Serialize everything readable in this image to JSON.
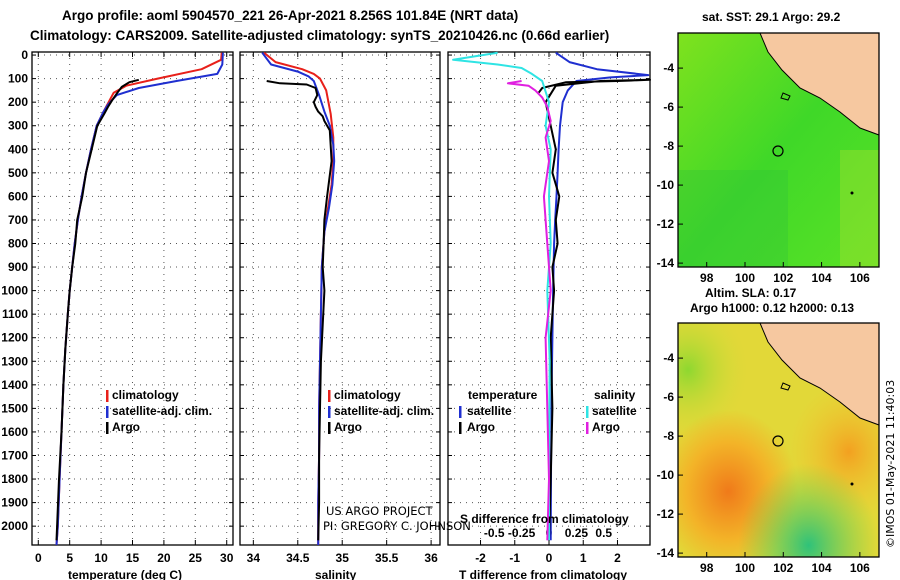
{
  "title": {
    "line1": "Argo profile: aoml 5904570_221 26-Apr-2021 8.256S 101.84E (NRT data)",
    "line2": "Climatology: CARS2009. Satellite-adjusted climatology: synTS_20210426.nc (0.66d earlier)"
  },
  "colors": {
    "climatology": "#e8201a",
    "satellite": "#1f2fd0",
    "argo": "#000000",
    "salinity_sat": "#2fe4e4",
    "salinity_argo": "#e020e0",
    "land": "#f6c8a0"
  },
  "chart_data": [
    {
      "type": "line",
      "name": "temperature",
      "xlabel": "temperature (deg C)",
      "ylabel": "depth",
      "xlim": [
        -1,
        31
      ],
      "ylim": [
        2080,
        0
      ],
      "xticks": [
        0,
        5,
        10,
        15,
        20,
        25,
        30
      ],
      "yticks": [
        0,
        100,
        200,
        300,
        400,
        500,
        600,
        700,
        800,
        900,
        1000,
        1100,
        1200,
        1300,
        1400,
        1500,
        1600,
        1700,
        1800,
        1900,
        2000
      ],
      "legend": [
        "climatology",
        "satellite-adj. clim.",
        "Argo"
      ],
      "series": [
        {
          "name": "climatology",
          "color_key": "climatology",
          "x": [
            29.2,
            29.1,
            26,
            19,
            14,
            12,
            11.2,
            10.4,
            9.3,
            8.4,
            7.6,
            6.9,
            6.3,
            5.8,
            5.4,
            5.0,
            4.7,
            4.3,
            4.0,
            3.7,
            3.4,
            3.1,
            2.9
          ],
          "y": [
            -10,
            20,
            60,
            100,
            130,
            160,
            200,
            240,
            300,
            400,
            500,
            600,
            700,
            800,
            900,
            1000,
            1100,
            1250,
            1400,
            1600,
            1800,
            2000,
            2080
          ]
        },
        {
          "name": "satellite-adj. clim.",
          "color_key": "satellite",
          "x": [
            29.4,
            29.3,
            28.5,
            22,
            16,
            12.5,
            11.1,
            10.4,
            9.3,
            8.4,
            7.6,
            6.9,
            6.3,
            5.8,
            5.4,
            5.0,
            4.7,
            4.3,
            4.0,
            3.7,
            3.4,
            3.1,
            2.9
          ],
          "y": [
            -10,
            40,
            80,
            110,
            140,
            170,
            210,
            240,
            300,
            400,
            500,
            600,
            700,
            800,
            900,
            1000,
            1100,
            1250,
            1400,
            1600,
            1800,
            2000,
            2080
          ]
        },
        {
          "name": "Argo",
          "color_key": "argo",
          "x": [
            16,
            14.5,
            13.3,
            12.6,
            11.8,
            11.1,
            10.5,
            9.4,
            8.5,
            7.6,
            7.0,
            6.2,
            5.9,
            5.4,
            5.0,
            4.7,
            4.3,
            4.0,
            3.7,
            3.3,
            3.0,
            2.9
          ],
          "y": [
            105,
            115,
            135,
            160,
            190,
            220,
            250,
            300,
            400,
            500,
            600,
            700,
            800,
            900,
            1000,
            1100,
            1250,
            1400,
            1600,
            1800,
            2000,
            2060
          ]
        }
      ]
    },
    {
      "type": "line",
      "name": "salinity",
      "xlabel": "salinity",
      "ylabel": "depth",
      "xlim": [
        33.85,
        36.1
      ],
      "ylim": [
        2080,
        0
      ],
      "xticks": [
        34,
        34.5,
        35,
        35.5,
        36
      ],
      "legend": [
        "climatology",
        "satellite-adj. clim.",
        "Argo"
      ],
      "annotations": [
        "US ARGO PROJECT",
        "PI: GREGORY C. JOHNSON"
      ],
      "series": [
        {
          "name": "climatology",
          "color_key": "climatology",
          "x": [
            34.12,
            34.25,
            34.55,
            34.68,
            34.75,
            34.82,
            34.87,
            34.9,
            34.9,
            34.88,
            34.84,
            34.8,
            34.77,
            34.76,
            34.75,
            34.74,
            34.74,
            34.73,
            34.73,
            34.73
          ],
          "y": [
            -10,
            30,
            60,
            80,
            100,
            150,
            250,
            350,
            450,
            550,
            650,
            750,
            900,
            1100,
            1300,
            1500,
            1700,
            1900,
            2000,
            2080
          ]
        },
        {
          "name": "satellite-adj. clim.",
          "color_key": "satellite",
          "x": [
            34.1,
            34.2,
            34.5,
            34.62,
            34.68,
            34.74,
            34.8,
            34.86,
            34.9,
            34.91,
            34.89,
            34.85,
            34.8,
            34.77,
            34.76,
            34.75,
            34.74,
            34.74,
            34.73,
            34.73
          ],
          "y": [
            -10,
            40,
            70,
            90,
            110,
            170,
            240,
            300,
            380,
            450,
            550,
            650,
            750,
            900,
            1100,
            1300,
            1500,
            1700,
            1900,
            2080
          ]
        },
        {
          "name": "Argo",
          "color_key": "argo",
          "x": [
            34.15,
            34.3,
            34.6,
            34.7,
            34.72,
            34.68,
            34.7,
            34.73,
            34.78,
            34.8,
            34.86,
            34.88,
            34.83,
            34.8,
            34.79,
            34.78,
            34.8,
            34.76,
            34.75,
            34.74,
            34.74,
            34.73
          ],
          "y": [
            110,
            120,
            125,
            140,
            170,
            200,
            220,
            240,
            260,
            280,
            320,
            450,
            600,
            700,
            800,
            900,
            1000,
            1300,
            1500,
            1700,
            1900,
            2060
          ]
        }
      ]
    },
    {
      "type": "line",
      "name": "differences",
      "xlabel": "T difference from climatology",
      "xlabel2": "S difference from climatology",
      "xlim": [
        -2.95,
        2.95
      ],
      "ylim": [
        2080,
        0
      ],
      "xticks": [
        -2,
        -1,
        0,
        1,
        2
      ],
      "xticks2_labels": [
        "-0.5",
        "-0.25",
        "0",
        "0.25",
        "0.5"
      ],
      "xticks2_values": [
        -1.6,
        -0.8,
        0,
        0.8,
        1.6
      ],
      "legend_headers": [
        "temperature",
        "salinity"
      ],
      "legend": [
        "satellite",
        "Argo",
        "satellite",
        "Argo"
      ],
      "series": [
        {
          "name": "temperature satellite",
          "color_key": "satellite",
          "x": [
            0.2,
            0.6,
            1.4,
            2.9,
            1.8,
            0.8,
            0.55,
            0.4,
            0.32,
            0.28,
            0.25,
            0.22,
            0.18,
            0.15,
            0.12,
            0.1,
            0.08,
            0.06,
            0.05
          ],
          "y": [
            -10,
            30,
            60,
            85,
            95,
            110,
            150,
            200,
            300,
            400,
            500,
            600,
            700,
            800,
            1000,
            1200,
            1400,
            1700,
            2060
          ]
        },
        {
          "name": "temperature Argo",
          "color_key": "argo",
          "x": [
            -0.3,
            -0.2,
            0.5,
            2.0,
            2.95,
            1.5,
            0.2,
            -0.1,
            0.05,
            0.2,
            0.1,
            0.3,
            0.2,
            0.25,
            0.1,
            0.15,
            0.05,
            0.1,
            0.05,
            0.0
          ],
          "y": [
            160,
            140,
            115,
            110,
            105,
            110,
            130,
            200,
            300,
            400,
            500,
            600,
            700,
            800,
            900,
            1000,
            1200,
            1500,
            1800,
            2060
          ]
        },
        {
          "name": "salinity satellite",
          "color_key": "salinity_sat",
          "x": [
            -1.5,
            -2.8,
            -1.5,
            -0.8,
            -0.5,
            -0.2,
            0.0,
            -0.1,
            0.05,
            0.0,
            0.05,
            -0.05,
            0.02,
            0.0,
            0.0
          ],
          "y": [
            -10,
            20,
            40,
            55,
            80,
            110,
            200,
            300,
            400,
            600,
            800,
            1000,
            1300,
            1700,
            2060
          ]
        },
        {
          "name": "salinity Argo",
          "color_key": "salinity_argo",
          "x": [
            -0.8,
            -1.2,
            -0.6,
            -0.4,
            -0.2,
            -0.05,
            0.05,
            -0.1,
            0.0,
            -0.15,
            -0.05,
            0.05,
            -0.1,
            -0.05,
            0.0,
            -0.05
          ],
          "y": [
            110,
            120,
            130,
            150,
            180,
            220,
            280,
            350,
            450,
            600,
            800,
            1000,
            1200,
            1500,
            1800,
            2060
          ]
        }
      ]
    },
    {
      "type": "heatmap",
      "name": "sat-sst-map",
      "title": "sat. SST: 29.1 Argo: 29.2",
      "xticks": [
        "98",
        "100",
        "102",
        "104",
        "106"
      ],
      "yticks": [
        "-4",
        "-6",
        "-8",
        "-10",
        "-12",
        "-14"
      ],
      "xlim": [
        96.5,
        107
      ],
      "ylim": [
        -14.2,
        -2.2
      ],
      "marker": {
        "lon": 101.84,
        "lat": -8.256
      }
    },
    {
      "type": "heatmap",
      "name": "altimetry-map",
      "title": "Altim. SLA: 0.17",
      "subtitle": "Argo h1000: 0.12 h2000: 0.13",
      "xticks": [
        "98",
        "100",
        "102",
        "104",
        "106"
      ],
      "yticks": [
        "-4",
        "-6",
        "-8",
        "-10",
        "-12",
        "-14"
      ],
      "xlim": [
        96.5,
        107
      ],
      "ylim": [
        -14.2,
        -2.2
      ],
      "marker": {
        "lon": 101.84,
        "lat": -8.256
      }
    }
  ],
  "credit": "©IMOS 01-May-2021 11:40:03"
}
